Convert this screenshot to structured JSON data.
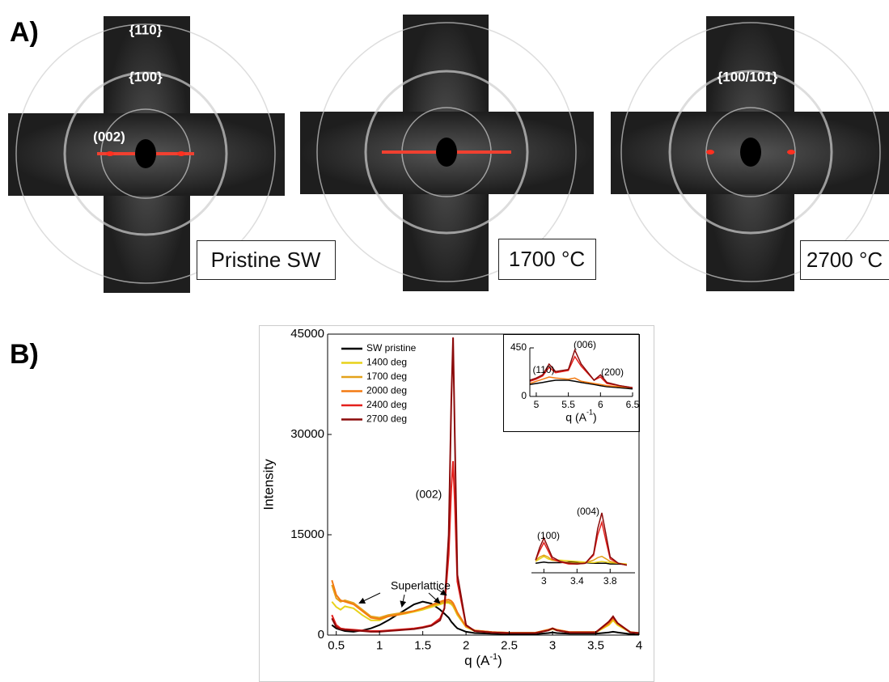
{
  "panel_a": {
    "label": "A)",
    "images": [
      {
        "labels": [
          "{110}",
          "{100}",
          "(002)"
        ],
        "caption": "Pristine SW"
      },
      {
        "labels": [],
        "caption": "1700 °C"
      },
      {
        "labels": [
          "{100/101}"
        ],
        "caption": "2700 °C"
      }
    ]
  },
  "panel_b": {
    "label": "B)"
  },
  "chart_data": [
    {
      "type": "line",
      "ylabel": "Intensity",
      "xlabel": [
        "q (A",
        "-1",
        ")"
      ],
      "xlim": [
        0.4,
        4.0
      ],
      "ylim": [
        0,
        45000
      ],
      "xticks": [
        0.5,
        1.0,
        1.5,
        2.0,
        2.5,
        3.0,
        3.5,
        4.0
      ],
      "yticks": [
        0,
        15000,
        30000,
        45000
      ],
      "annotations": [
        "(002)",
        "Superlattice"
      ],
      "legend": "upper left",
      "x": [
        0.45,
        0.5,
        0.55,
        0.6,
        0.7,
        0.8,
        0.9,
        1.0,
        1.1,
        1.2,
        1.3,
        1.4,
        1.5,
        1.6,
        1.7,
        1.75,
        1.8,
        1.83,
        1.85,
        1.87,
        1.9,
        2.0,
        2.1,
        2.3,
        2.5,
        2.8,
        2.95,
        3.0,
        3.05,
        3.2,
        3.5,
        3.65,
        3.7,
        3.75,
        3.9,
        4.0
      ],
      "series": [
        {
          "name": "SW pristine",
          "color": "#000000",
          "values": [
            1500,
            1000,
            800,
            600,
            500,
            700,
            1000,
            1500,
            2200,
            3000,
            3800,
            4600,
            5000,
            4700,
            3800,
            3200,
            2600,
            2000,
            1700,
            1400,
            1000,
            500,
            300,
            200,
            150,
            150,
            300,
            400,
            300,
            200,
            200,
            400,
            500,
            400,
            150,
            100
          ]
        },
        {
          "name": "1400 deg",
          "color": "#e8d21a",
          "values": [
            5000,
            4200,
            3800,
            4300,
            4000,
            3000,
            2200,
            2200,
            2800,
            3000,
            3200,
            3500,
            3800,
            4200,
            4600,
            4800,
            4800,
            4600,
            4300,
            3800,
            3000,
            1200,
            600,
            400,
            300,
            300,
            700,
            900,
            700,
            400,
            400,
            1500,
            2200,
            1500,
            400,
            300
          ]
        },
        {
          "name": "1700 deg",
          "color": "#e3a21a",
          "values": [
            7500,
            5500,
            5000,
            5200,
            4800,
            3800,
            2800,
            2600,
            3000,
            3200,
            3400,
            3600,
            4000,
            4400,
            4800,
            5000,
            5000,
            4800,
            4500,
            4000,
            3200,
            1300,
            700,
            450,
            350,
            350,
            800,
            1000,
            800,
            450,
            450,
            1700,
            2500,
            1700,
            450,
            300
          ]
        },
        {
          "name": "2000 deg",
          "color": "#f37a12",
          "values": [
            8200,
            6000,
            5200,
            5000,
            4600,
            3600,
            2600,
            2400,
            2800,
            3000,
            3300,
            3600,
            4000,
            4500,
            5000,
            5200,
            5300,
            5100,
            4800,
            4300,
            3400,
            1300,
            700,
            450,
            350,
            350,
            800,
            1000,
            800,
            450,
            450,
            1700,
            2500,
            1700,
            450,
            300
          ]
        },
        {
          "name": "2400 deg",
          "color": "#e4201c",
          "values": [
            3000,
            1500,
            1000,
            900,
            800,
            700,
            600,
            600,
            700,
            800,
            900,
            1000,
            1200,
            1500,
            2500,
            4000,
            12000,
            22000,
            26000,
            20000,
            8000,
            1500,
            600,
            400,
            300,
            300,
            700,
            1000,
            700,
            400,
            400,
            2000,
            2700,
            1800,
            400,
            300
          ]
        },
        {
          "name": "2700 deg",
          "color": "#8b0a0a",
          "values": [
            2500,
            1200,
            900,
            800,
            700,
            600,
            500,
            500,
            600,
            700,
            800,
            900,
            1100,
            1400,
            2200,
            4000,
            15000,
            35000,
            44500,
            30000,
            9000,
            1500,
            600,
            400,
            300,
            300,
            700,
            1000,
            700,
            400,
            400,
            2000,
            2800,
            1800,
            400,
            300
          ]
        }
      ]
    },
    {
      "type": "line",
      "xlabel": [
        "q (A",
        "-1",
        ")"
      ],
      "xlim": [
        4.9,
        6.5
      ],
      "ylim": [
        0,
        450
      ],
      "xticks": [
        5.0,
        5.5,
        6.0,
        6.5
      ],
      "yticks": [
        0,
        450
      ],
      "annotations": [
        "(110)",
        "(006)",
        "(200)"
      ],
      "x": [
        4.9,
        5.0,
        5.1,
        5.2,
        5.3,
        5.5,
        5.6,
        5.7,
        5.9,
        6.0,
        6.1,
        6.3,
        6.5
      ],
      "series": [
        {
          "color": "#000000",
          "values": [
            110,
            120,
            130,
            140,
            150,
            150,
            140,
            130,
            110,
            100,
            90,
            80,
            70
          ]
        },
        {
          "color": "#f37a12",
          "values": [
            120,
            140,
            160,
            180,
            170,
            160,
            170,
            140,
            120,
            110,
            100,
            90,
            80
          ]
        },
        {
          "color": "#e4201c",
          "values": [
            140,
            160,
            190,
            270,
            220,
            240,
            370,
            280,
            150,
            180,
            120,
            100,
            80
          ]
        },
        {
          "color": "#8b0a0a",
          "values": [
            150,
            170,
            200,
            300,
            230,
            250,
            430,
            300,
            150,
            200,
            130,
            100,
            80
          ]
        }
      ]
    },
    {
      "type": "line",
      "xlim": [
        2.85,
        4.1
      ],
      "ylim": [
        0,
        100
      ],
      "xticks": [
        3.0,
        3.4,
        3.8
      ],
      "annotations": [
        "(100)",
        "(004)"
      ],
      "x": [
        2.9,
        2.95,
        3.0,
        3.05,
        3.1,
        3.2,
        3.3,
        3.4,
        3.5,
        3.6,
        3.65,
        3.7,
        3.75,
        3.8,
        3.9,
        4.0
      ],
      "series": [
        {
          "color": "#000000",
          "values": [
            15,
            16,
            17,
            16,
            16,
            16,
            17,
            17,
            16,
            15,
            15,
            15,
            15,
            14,
            14,
            13
          ]
        },
        {
          "color": "#e8d21a",
          "values": [
            18,
            22,
            26,
            22,
            20,
            20,
            19,
            18,
            17,
            16,
            17,
            18,
            17,
            16,
            15,
            14
          ]
        },
        {
          "color": "#e3a21a",
          "values": [
            20,
            25,
            28,
            25,
            20,
            18,
            16,
            15,
            16,
            20,
            24,
            26,
            22,
            18,
            15,
            13
          ]
        },
        {
          "color": "#e4201c",
          "values": [
            20,
            35,
            48,
            35,
            22,
            17,
            14,
            14,
            15,
            28,
            60,
            80,
            50,
            22,
            15,
            12
          ]
        },
        {
          "color": "#8b0a0a",
          "values": [
            20,
            40,
            55,
            40,
            25,
            18,
            15,
            14,
            15,
            30,
            70,
            95,
            60,
            25,
            15,
            12
          ]
        }
      ]
    }
  ]
}
